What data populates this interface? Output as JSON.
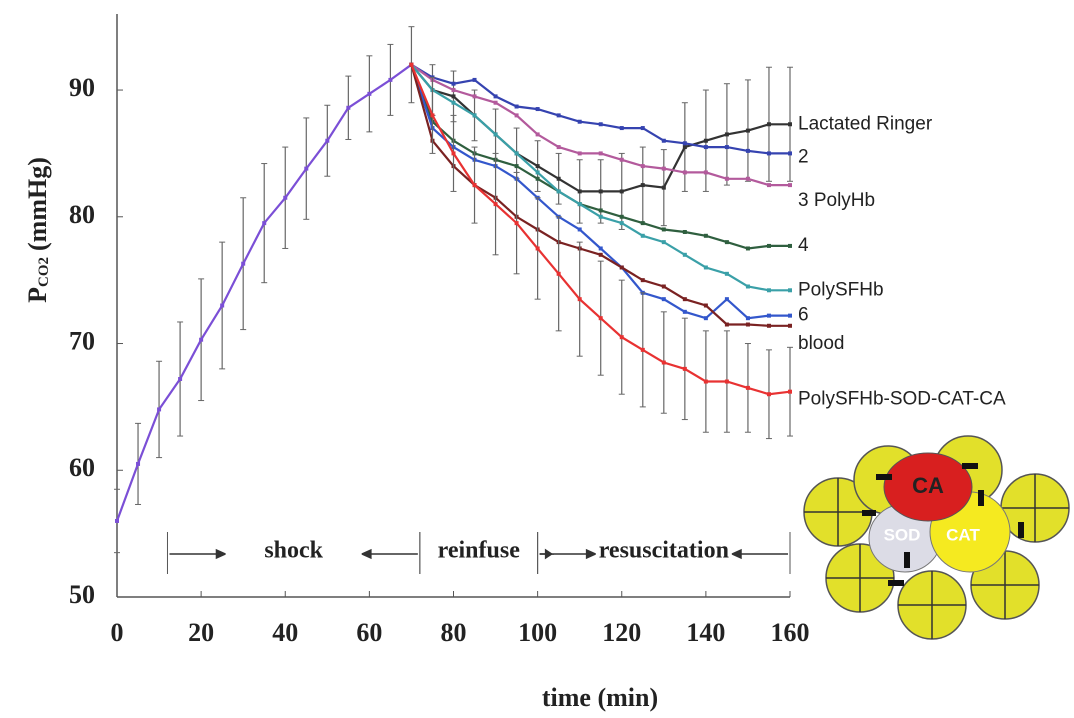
{
  "chart_data": {
    "type": "line",
    "xlabel": "time (min)",
    "ylabel": {
      "main": "P",
      "sub": "CO2",
      "unit": "(mmHg)"
    },
    "xlim": [
      0,
      160
    ],
    "ylim": [
      50,
      96
    ],
    "xticks": [
      0,
      20,
      40,
      60,
      80,
      100,
      120,
      140,
      160
    ],
    "yticks": [
      50,
      60,
      70,
      80,
      90
    ],
    "x": [
      0,
      5,
      10,
      15,
      20,
      25,
      30,
      35,
      40,
      45,
      50,
      55,
      60,
      65,
      70,
      75,
      80,
      85,
      90,
      95,
      100,
      105,
      110,
      115,
      120,
      125,
      130,
      135,
      140,
      145,
      150,
      155,
      160
    ],
    "series": [
      {
        "color": "#7b4fd6",
        "values": [
          56,
          60.5,
          64.8,
          67.2,
          70.3,
          73,
          76.3,
          79.5,
          81.5,
          83.8,
          86,
          88.6,
          89.7,
          90.8,
          92,
          null,
          null,
          null,
          null,
          null,
          null,
          null,
          null,
          null,
          null,
          null,
          null,
          null,
          null,
          null,
          null,
          null,
          null
        ],
        "errors": [
          2.5,
          3.2,
          3.8,
          4.5,
          4.8,
          5,
          5.2,
          4.7,
          4,
          4,
          2.8,
          2.5,
          3,
          2.8,
          3,
          null,
          null,
          null,
          null,
          null,
          null,
          null,
          null,
          null,
          null,
          null,
          null,
          null,
          null,
          null,
          null,
          null,
          null
        ]
      },
      {
        "name": "Lactated Ringer",
        "color": "#333333",
        "values": [
          null,
          null,
          null,
          null,
          null,
          null,
          null,
          null,
          null,
          null,
          null,
          null,
          null,
          null,
          92,
          90,
          89.5,
          88,
          86.5,
          85,
          84,
          83,
          82,
          82,
          82,
          82.5,
          82.3,
          85.5,
          86,
          86.5,
          86.8,
          87.3,
          87.3
        ],
        "errors": [
          null,
          null,
          null,
          null,
          null,
          null,
          null,
          null,
          null,
          null,
          null,
          null,
          null,
          null,
          null,
          2,
          2,
          2,
          2,
          2,
          2,
          2,
          2.5,
          2.5,
          3,
          3,
          3,
          3.5,
          4,
          4,
          4,
          4.5,
          4.5
        ]
      },
      {
        "name": "2",
        "color": "#3543b0",
        "values": [
          null,
          null,
          null,
          null,
          null,
          null,
          null,
          null,
          null,
          null,
          null,
          null,
          null,
          null,
          92,
          91,
          90.5,
          90.8,
          89.5,
          88.7,
          88.5,
          88,
          87.5,
          87.3,
          87,
          87,
          86,
          85.8,
          85.5,
          85.5,
          85.2,
          85,
          85
        ]
      },
      {
        "name": "3 PolyHb",
        "color": "#b35a9c",
        "values": [
          null,
          null,
          null,
          null,
          null,
          null,
          null,
          null,
          null,
          null,
          null,
          null,
          null,
          null,
          92,
          90.8,
          90,
          89.5,
          89,
          88,
          86.5,
          85.5,
          85,
          85,
          84.5,
          84,
          83.8,
          83.5,
          83.5,
          83,
          83,
          82.5,
          82.5
        ]
      },
      {
        "name": "4",
        "color": "#2f5f3f",
        "values": [
          null,
          null,
          null,
          null,
          null,
          null,
          null,
          null,
          null,
          null,
          null,
          null,
          null,
          null,
          92,
          87.5,
          86,
          85,
          84.5,
          84,
          83,
          82,
          81,
          80.5,
          80,
          79.5,
          79,
          78.8,
          78.5,
          78,
          77.5,
          77.7,
          77.7
        ]
      },
      {
        "name": "PolySFHb",
        "color": "#3aa0a8",
        "values": [
          null,
          null,
          null,
          null,
          null,
          null,
          null,
          null,
          null,
          null,
          null,
          null,
          null,
          null,
          92,
          90,
          89,
          88,
          86.5,
          85,
          83.5,
          82,
          81,
          80,
          79.5,
          78.5,
          78,
          77,
          76,
          75.5,
          74.5,
          74.2,
          74.2
        ]
      },
      {
        "name": "6",
        "color": "#3357cc",
        "values": [
          null,
          null,
          null,
          null,
          null,
          null,
          null,
          null,
          null,
          null,
          null,
          null,
          null,
          null,
          92,
          87,
          85.5,
          84.5,
          84,
          83,
          81.5,
          80,
          79,
          77.5,
          76,
          74,
          73.5,
          72.5,
          72,
          73.5,
          72,
          72.2,
          72.2
        ]
      },
      {
        "name": "blood",
        "color": "#7a2222",
        "values": [
          null,
          null,
          null,
          null,
          null,
          null,
          null,
          null,
          null,
          null,
          null,
          null,
          null,
          null,
          92,
          86,
          84,
          82.5,
          81.5,
          80,
          79,
          78,
          77.5,
          77,
          76,
          75,
          74.5,
          73.5,
          73,
          71.5,
          71.5,
          71.4,
          71.4
        ]
      },
      {
        "name": "PolySFHb-SOD-CAT-CA",
        "color": "#e83232",
        "values": [
          null,
          null,
          null,
          null,
          null,
          null,
          null,
          null,
          null,
          null,
          null,
          null,
          null,
          null,
          92,
          88,
          85,
          82.5,
          81,
          79.5,
          77.5,
          75.5,
          73.5,
          72,
          70.5,
          69.5,
          68.5,
          68,
          67,
          67,
          66.5,
          66,
          66.2
        ],
        "errors": [
          null,
          null,
          null,
          null,
          null,
          null,
          null,
          null,
          null,
          null,
          null,
          null,
          null,
          null,
          null,
          3,
          3,
          3,
          4,
          4,
          4,
          4.5,
          4.5,
          4.5,
          4.5,
          4.5,
          4,
          4,
          4,
          4,
          3.5,
          3.5,
          3.5
        ]
      }
    ],
    "phases": [
      {
        "label": "shock",
        "start": 12,
        "end": 72
      },
      {
        "label": "reinfuse",
        "start": 72,
        "end": 100
      },
      {
        "label": "resuscitation",
        "start": 100,
        "end": 160
      }
    ]
  },
  "inset": {
    "labels": {
      "ca": "CA",
      "sod": "SOD",
      "cat": "CAT"
    }
  }
}
